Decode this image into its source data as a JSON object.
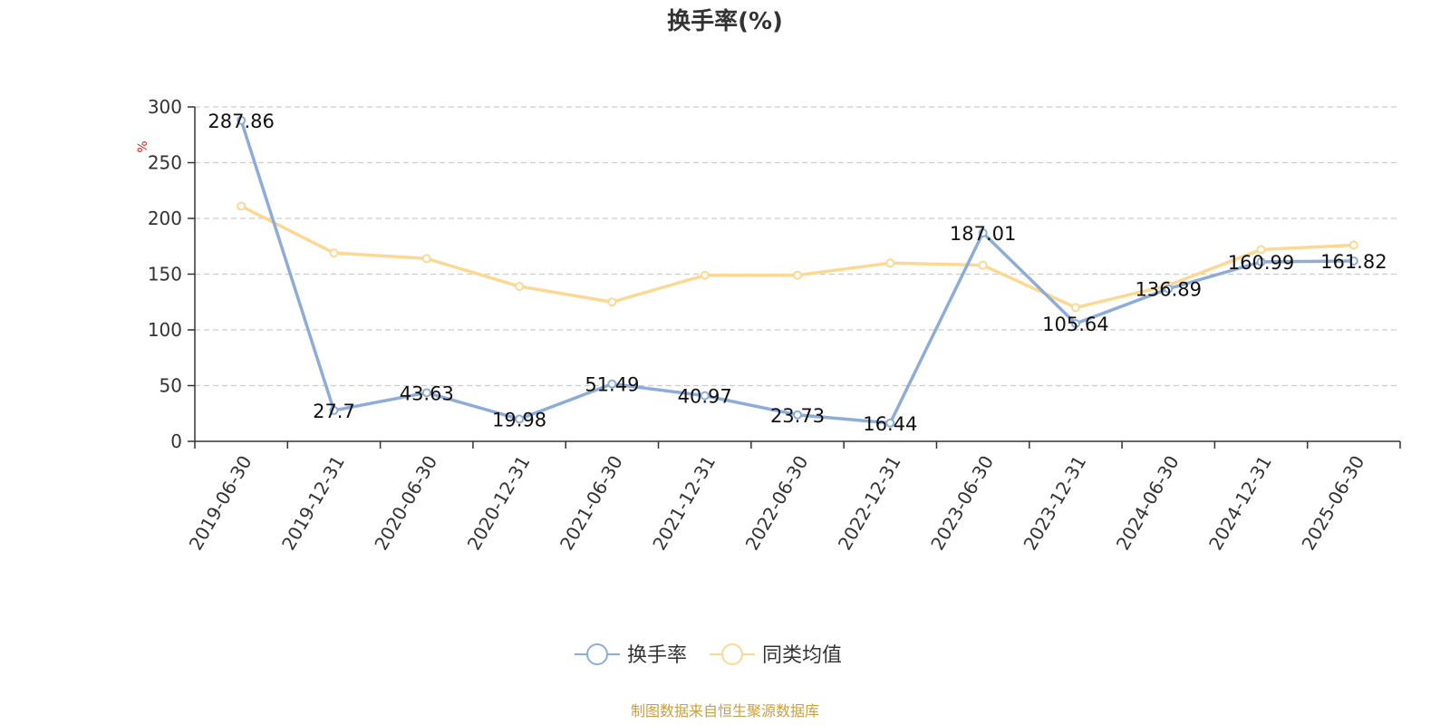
{
  "chart_data": {
    "type": "line",
    "title": "换手率(%)",
    "ylabel": "%",
    "ylim": [
      0,
      300
    ],
    "yticks": [
      "0",
      "50",
      "100",
      "150",
      "200",
      "250",
      "300"
    ],
    "grid": true,
    "legend_position": "bottom",
    "categories": [
      "2019-06-30",
      "2019-12-31",
      "2020-06-30",
      "2020-12-31",
      "2021-06-30",
      "2021-12-31",
      "2022-06-30",
      "2022-12-31",
      "2023-06-30",
      "2023-12-31",
      "2024-06-30",
      "2024-12-31",
      "2025-06-30"
    ],
    "series": [
      {
        "name": "换手率",
        "color": "#8eacd8",
        "values": [
          287.86,
          27.7,
          43.63,
          19.98,
          51.49,
          40.97,
          23.73,
          16.44,
          187.01,
          105.64,
          136.89,
          160.99,
          161.82
        ],
        "labels": [
          "287.86",
          "27.7",
          "43.63",
          "19.98",
          "51.49",
          "40.97",
          "23.73",
          "16.44",
          "187.01",
          "105.64",
          "136.89",
          "160.99",
          "161.82"
        ]
      },
      {
        "name": "同类均值",
        "color": "#fcd993",
        "values": [
          211,
          169,
          164,
          139,
          125,
          149,
          149,
          160,
          158,
          120,
          140,
          172,
          176
        ]
      }
    ]
  },
  "unit_color": "#e02020",
  "source_text": "制图数据来自恒生聚源数据库",
  "source_color": "#c8a040"
}
